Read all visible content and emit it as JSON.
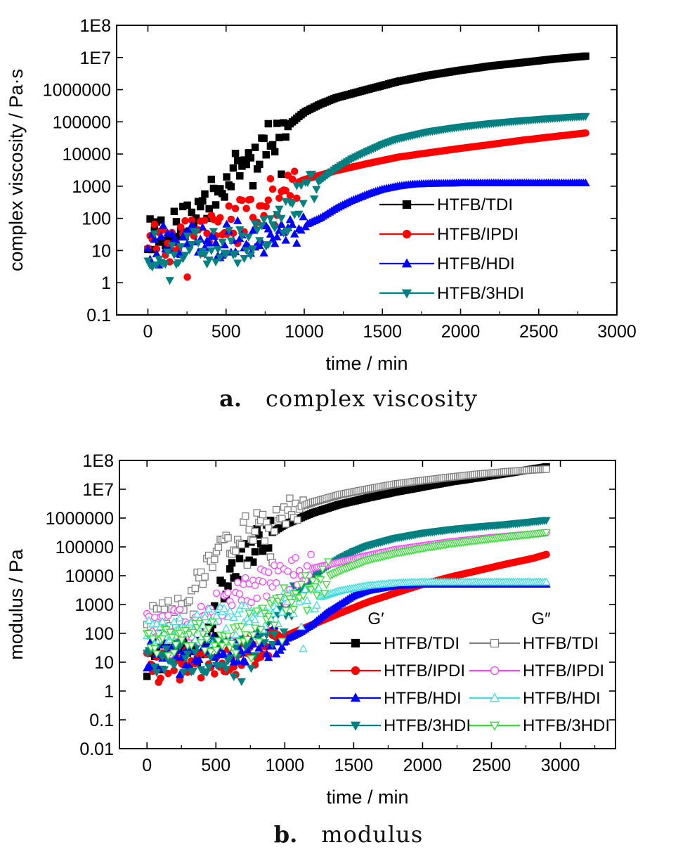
{
  "captions": [
    {
      "letter": "a.",
      "text": "complex viscosity"
    },
    {
      "letter": "b.",
      "text": "modulus"
    }
  ],
  "chart_data": [
    {
      "type": "scatter",
      "xlabel": "time / min",
      "ylabel": "complex viscosity / Pa·s",
      "xlim": [
        -200,
        3000
      ],
      "ylim": [
        0.1,
        100000000
      ],
      "yscale": "log",
      "xticks": [
        "0",
        "500",
        "1000",
        "1500",
        "2000",
        "2500",
        "3000"
      ],
      "yticks": [
        "0.1",
        "1",
        "10",
        "100",
        "1000",
        "10000",
        "100000",
        "1000000",
        "1E7",
        "1E8"
      ],
      "legend_position": "lower-right",
      "series": [
        {
          "name": "HTFB/TDI",
          "marker": "square",
          "color": "#000000",
          "x": [
            0,
            100,
            200,
            300,
            400,
            500,
            600,
            700,
            800,
            900,
            1000,
            1100,
            1200,
            1400,
            1600,
            1800,
            2000,
            2200,
            2400,
            2600,
            2800
          ],
          "y": [
            30,
            45,
            60,
            150,
            500,
            1500,
            5000,
            13000,
            35000,
            80000,
            200000,
            350000,
            550000,
            1000000,
            1800000,
            2800000,
            4000000,
            5500000,
            7000000,
            9000000,
            11000000
          ]
        },
        {
          "name": "HTFB/IPDI",
          "marker": "circle",
          "color": "#ff0000",
          "x": [
            0,
            100,
            200,
            300,
            400,
            500,
            600,
            700,
            800,
            900,
            1000,
            1200,
            1400,
            1600,
            1800,
            2000,
            2200,
            2400,
            2600,
            2800
          ],
          "y": [
            20,
            25,
            30,
            35,
            45,
            80,
            150,
            300,
            600,
            1000,
            1600,
            3000,
            5000,
            8000,
            11000,
            15000,
            20000,
            27000,
            35000,
            45000
          ]
        },
        {
          "name": "HTFB/HDI",
          "marker": "triangle-up",
          "color": "#0000ff",
          "x": [
            0,
            200,
            400,
            600,
            800,
            900,
            1000,
            1100,
            1200,
            1300,
            1400,
            1500,
            1600,
            1700,
            1800,
            2000,
            2400,
            2800
          ],
          "y": [
            15,
            20,
            20,
            25,
            30,
            40,
            60,
            100,
            200,
            350,
            550,
            800,
            1000,
            1150,
            1200,
            1250,
            1250,
            1250
          ]
        },
        {
          "name": "HTFB/3HDI",
          "marker": "triangle-down",
          "color": "#008080",
          "x": [
            0,
            200,
            400,
            600,
            800,
            900,
            1000,
            1100,
            1200,
            1300,
            1400,
            1500,
            1600,
            1800,
            2000,
            2200,
            2400,
            2600,
            2800
          ],
          "y": [
            10,
            12,
            12,
            15,
            40,
            150,
            600,
            1500,
            3500,
            7000,
            12000,
            20000,
            30000,
            50000,
            70000,
            90000,
            110000,
            130000,
            150000
          ]
        }
      ]
    },
    {
      "type": "scatter",
      "xlabel": "time / min",
      "ylabel": "modulus / Pa",
      "xlim": [
        -200,
        3400
      ],
      "ylim": [
        0.01,
        100000000
      ],
      "yscale": "log",
      "xticks": [
        "0",
        "500",
        "1000",
        "1500",
        "2000",
        "2500",
        "3000"
      ],
      "yticks": [
        "0.01",
        "0.1",
        "1",
        "10",
        "100",
        "1000",
        "10000",
        "100000",
        "1000000",
        "1E7",
        "1E8"
      ],
      "legend_position": "lower-right",
      "legend_headers": [
        "G′",
        "G″"
      ],
      "series": [
        {
          "name": "HTFB/TDI",
          "group": "G′",
          "marker": "square",
          "filled": true,
          "color": "#000000",
          "x": [
            0,
            200,
            400,
            500,
            600,
            700,
            800,
            900,
            1000,
            1200,
            1400,
            1600,
            1800,
            2000,
            2200,
            2400,
            2600,
            2800,
            2900
          ],
          "y": [
            30,
            40,
            60,
            1000,
            10000,
            50000,
            150000,
            300000,
            600000,
            1500000,
            3000000,
            5000000,
            8000000,
            12000000,
            18000000,
            25000000,
            35000000,
            50000000,
            60000000
          ]
        },
        {
          "name": "HTFB/IPDI",
          "group": "G′",
          "marker": "circle",
          "filled": true,
          "color": "#ff0000",
          "x": [
            0,
            200,
            400,
            600,
            800,
            1000,
            1200,
            1400,
            1600,
            1800,
            2000,
            2200,
            2400,
            2600,
            2800,
            2900
          ],
          "y": [
            10,
            8,
            10,
            15,
            30,
            80,
            200,
            500,
            1200,
            2500,
            5000,
            9000,
            15000,
            25000,
            40000,
            55000
          ]
        },
        {
          "name": "HTFB/HDI",
          "group": "G′",
          "marker": "triangle-up",
          "filled": true,
          "color": "#0000ff",
          "x": [
            0,
            200,
            400,
            600,
            800,
            1000,
            1100,
            1200,
            1300,
            1400,
            1500,
            1600,
            1800,
            2000,
            2400,
            2900
          ],
          "y": [
            20,
            20,
            25,
            30,
            40,
            60,
            100,
            200,
            500,
            1000,
            2000,
            3000,
            4500,
            5000,
            5000,
            5000
          ]
        },
        {
          "name": "HTFB/3HDI",
          "group": "G′",
          "marker": "triangle-down",
          "filled": true,
          "color": "#008080",
          "x": [
            0,
            200,
            400,
            600,
            800,
            900,
            1000,
            1100,
            1200,
            1300,
            1400,
            1500,
            1600,
            1800,
            2000,
            2200,
            2400,
            2600,
            2800,
            2900
          ],
          "y": [
            15,
            15,
            15,
            20,
            40,
            120,
            600,
            2500,
            8000,
            20000,
            40000,
            70000,
            110000,
            200000,
            300000,
            400000,
            500000,
            600000,
            750000,
            850000
          ]
        },
        {
          "name": "HTFB/TDI",
          "group": "G″",
          "marker": "square",
          "filled": false,
          "color": "#808080",
          "x": [
            0,
            100,
            200,
            300,
            400,
            500,
            600,
            800,
            1000,
            1200,
            1400,
            1600,
            1800,
            2000,
            2200,
            2400,
            2600,
            2800,
            2900
          ],
          "y": [
            300,
            350,
            500,
            2000,
            15000,
            60000,
            150000,
            600000,
            1500000,
            3500000,
            6500000,
            10000000,
            15000000,
            20000000,
            26000000,
            33000000,
            40000000,
            47000000,
            50000000
          ]
        },
        {
          "name": "HTFB/IPDI",
          "group": "G″",
          "marker": "circle",
          "filled": false,
          "color": "#ff44ff",
          "x": [
            0,
            200,
            400,
            600,
            800,
            1000,
            1200,
            1400,
            1600,
            1800,
            2000,
            2200,
            2400,
            2600,
            2800,
            2900
          ],
          "y": [
            200,
            200,
            300,
            2000,
            5000,
            10000,
            18000,
            30000,
            50000,
            80000,
            110000,
            150000,
            190000,
            230000,
            280000,
            310000
          ]
        },
        {
          "name": "HTFB/HDI",
          "group": "G″",
          "marker": "triangle-up",
          "filled": false,
          "color": "#44dddd",
          "x": [
            0,
            200,
            400,
            600,
            800,
            1000,
            1200,
            1400,
            1600,
            1800,
            2000,
            2400,
            2900
          ],
          "y": [
            150,
            150,
            200,
            250,
            400,
            800,
            1500,
            3000,
            4500,
            5500,
            6000,
            6000,
            6000
          ]
        },
        {
          "name": "HTFB/3HDI",
          "group": "G″",
          "marker": "triangle-down",
          "filled": false,
          "color": "#33dd33",
          "x": [
            0,
            200,
            400,
            600,
            800,
            900,
            1000,
            1200,
            1400,
            1600,
            1800,
            2000,
            2200,
            2400,
            2600,
            2800,
            2900
          ],
          "y": [
            60,
            60,
            70,
            80,
            200,
            500,
            1200,
            5000,
            15000,
            35000,
            60000,
            90000,
            130000,
            170000,
            220000,
            280000,
            320000
          ]
        }
      ]
    }
  ]
}
